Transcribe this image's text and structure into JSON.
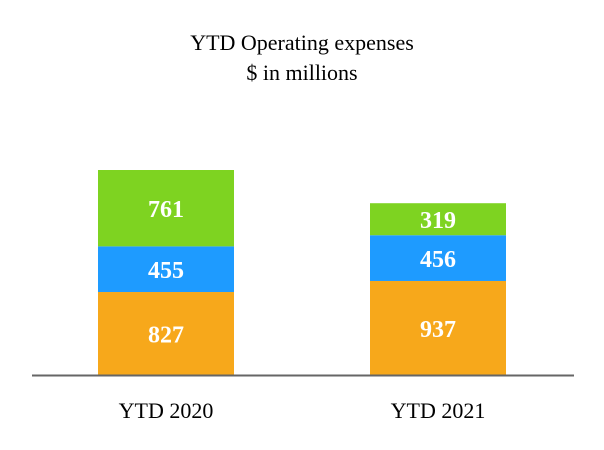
{
  "chart_data": {
    "type": "bar",
    "stacked": true,
    "title": "YTD Operating expenses",
    "subtitle": "$ in millions",
    "categories": [
      "YTD 2020",
      "YTD 2021"
    ],
    "series": [
      {
        "values": [
          827,
          937
        ],
        "color": "#f7a81b"
      },
      {
        "values": [
          455,
          456
        ],
        "color": "#1e9bff"
      },
      {
        "values": [
          761,
          319
        ],
        "color": "#7ed321"
      }
    ],
    "ylim": [
      0,
      2043
    ],
    "grid": false,
    "legend": "none",
    "xlabel": "",
    "ylabel": ""
  }
}
